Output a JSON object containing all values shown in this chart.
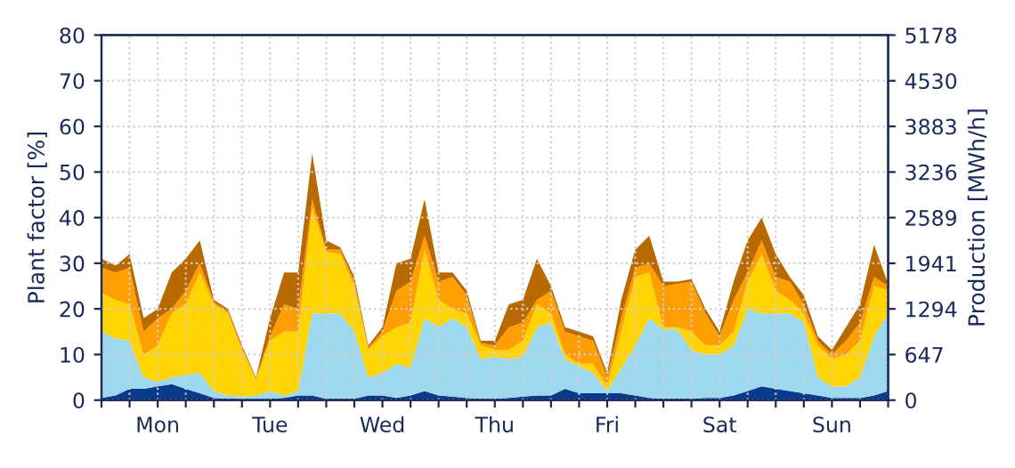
{
  "chart_data": {
    "type": "area",
    "stacked": true,
    "ylabel": "Plant factor [%]",
    "y2label": "Production [MWh/h]",
    "categories": [
      null,
      null,
      null,
      null,
      "Mon",
      null,
      null,
      null,
      null,
      null,
      null,
      null,
      "Tue",
      null,
      null,
      null,
      null,
      null,
      null,
      null,
      "Wed",
      null,
      null,
      null,
      null,
      null,
      null,
      null,
      "Thu",
      null,
      null,
      null,
      null,
      null,
      null,
      null,
      "Fri",
      null,
      null,
      null,
      null,
      null,
      null,
      null,
      "Sat",
      null,
      null,
      null,
      null,
      null,
      null,
      null,
      "Sun",
      null,
      null,
      null,
      null
    ],
    "series": [
      {
        "color": "#0a3a8c",
        "values": [
          0.5,
          1,
          2.5,
          2.5,
          3,
          3.5,
          2.5,
          1.5,
          0.5,
          0.3,
          0.2,
          0,
          0.3,
          0.5,
          1,
          1,
          0.3,
          0.3,
          0.3,
          1,
          1,
          0.5,
          1,
          2,
          1,
          0.8,
          0.5,
          0.3,
          0.3,
          0.5,
          0.8,
          1,
          1,
          2.5,
          1.5,
          1.5,
          1.5,
          1.5,
          1,
          0.5,
          0.3,
          0.3,
          0.3,
          0.5,
          0.5,
          1,
          2,
          3,
          2.5,
          2,
          1.5,
          1,
          0.5,
          0.5,
          0.5,
          1,
          2
        ]
      },
      {
        "color": "#9dd8ee",
        "values": [
          14.5,
          12.5,
          10.5,
          2.5,
          1,
          1.5,
          3,
          4.5,
          1.5,
          0.7,
          0.6,
          1,
          1.7,
          0.5,
          1,
          18,
          18.7,
          18.7,
          14.7,
          4,
          5,
          7.5,
          6,
          16,
          15,
          17.2,
          15.5,
          8.7,
          9.2,
          8.5,
          8.7,
          15,
          16,
          6.5,
          6,
          4.5,
          0.5,
          5.5,
          11,
          17.5,
          15.2,
          15.2,
          10.7,
          9.5,
          9.5,
          11,
          18,
          16,
          16.5,
          17,
          15.5,
          4,
          2.5,
          2.5,
          4.5,
          13,
          17
        ]
      },
      {
        "color": "#ffd400",
        "values": [
          8.5,
          8.5,
          8,
          5,
          8,
          14,
          15.5,
          22,
          19,
          18,
          10.2,
          3.5,
          11,
          14,
          13,
          23,
          13.5,
          13,
          10,
          6,
          8,
          8,
          10,
          15,
          6,
          2,
          3,
          3,
          1.5,
          2,
          3.5,
          5,
          2,
          1,
          0.5,
          2,
          1,
          8,
          15,
          10,
          0.5,
          0.5,
          4,
          2,
          2,
          3,
          6,
          13,
          5,
          3,
          2,
          7,
          6,
          7,
          8,
          11,
          5
        ]
      },
      {
        "color": "#ff9e00",
        "values": [
          5.5,
          6,
          8,
          5,
          6,
          1,
          3,
          2,
          0.5,
          0.5,
          0.5,
          0.3,
          1,
          6,
          5,
          2,
          0.5,
          1,
          1,
          0.5,
          1,
          8,
          9,
          3,
          4,
          7,
          4,
          0.5,
          1,
          5,
          4,
          1,
          5,
          5,
          6,
          5,
          2,
          3,
          2,
          2,
          9,
          9.5,
          11,
          7,
          2,
          7,
          2,
          3,
          3,
          4,
          2,
          1,
          1,
          3,
          4,
          2,
          1
        ]
      },
      {
        "color": "#b86a00",
        "values": [
          2,
          1.5,
          3,
          3,
          2,
          8,
          7,
          5,
          0.5,
          0.5,
          0.5,
          0.2,
          4,
          7,
          8,
          10,
          2,
          0.5,
          1,
          0.5,
          1,
          6,
          5,
          8,
          2,
          1,
          1,
          0.5,
          1,
          5,
          5,
          9,
          1,
          1,
          1,
          1,
          1,
          4,
          4,
          6,
          1,
          0.5,
          0.5,
          1,
          1,
          4,
          7,
          5,
          5,
          1,
          2,
          1,
          1,
          3,
          4,
          7,
          0.5
        ]
      }
    ],
    "ylim": [
      0,
      80
    ],
    "yticks": [
      0,
      10,
      20,
      30,
      40,
      50,
      60,
      70,
      80
    ],
    "y2lim": [
      0,
      5178
    ],
    "y2ticks": [
      0,
      647,
      1294,
      1941,
      2589,
      3236,
      3883,
      4530,
      5178
    ],
    "grid": true
  }
}
